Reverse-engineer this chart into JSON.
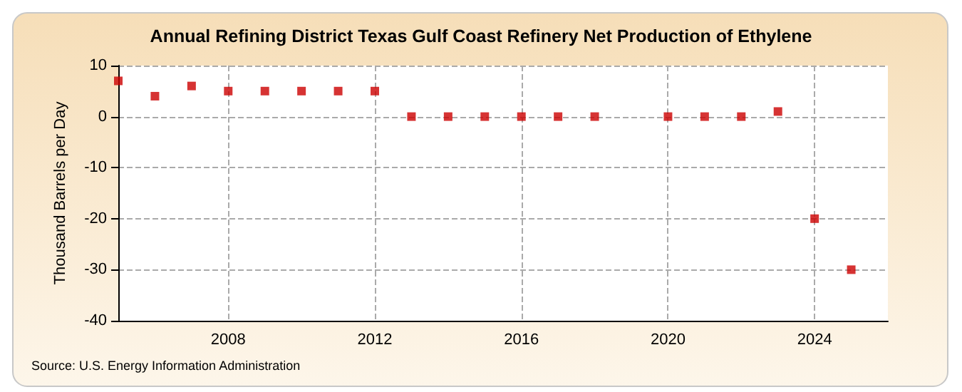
{
  "chart_data": {
    "type": "scatter",
    "title": "Annual Refining District Texas Gulf Coast Refinery Net Production of Ethylene",
    "ylabel": "Thousand Barrels per Day",
    "x": [
      2005,
      2006,
      2007,
      2008,
      2009,
      2010,
      2011,
      2012,
      2013,
      2014,
      2015,
      2016,
      2017,
      2018,
      2020,
      2021,
      2022,
      2023,
      2024,
      2025
    ],
    "series": [
      {
        "color": "#cc0000",
        "values": [
          7,
          4,
          6,
          5,
          5,
          5,
          5,
          5,
          0,
          0,
          0,
          0,
          0,
          0,
          0,
          0,
          0,
          1,
          -20,
          -30
        ]
      }
    ],
    "xlim": [
      2005,
      2026
    ],
    "xticks": [
      2008,
      2012,
      2016,
      2020,
      2024
    ],
    "ylim": [
      -40,
      10
    ],
    "yticks": [
      -40,
      -30,
      -20,
      -10,
      0,
      10
    ],
    "grid": true,
    "marker": "square",
    "annotations": [
      "Source: U.S. Energy Information Administration"
    ]
  }
}
